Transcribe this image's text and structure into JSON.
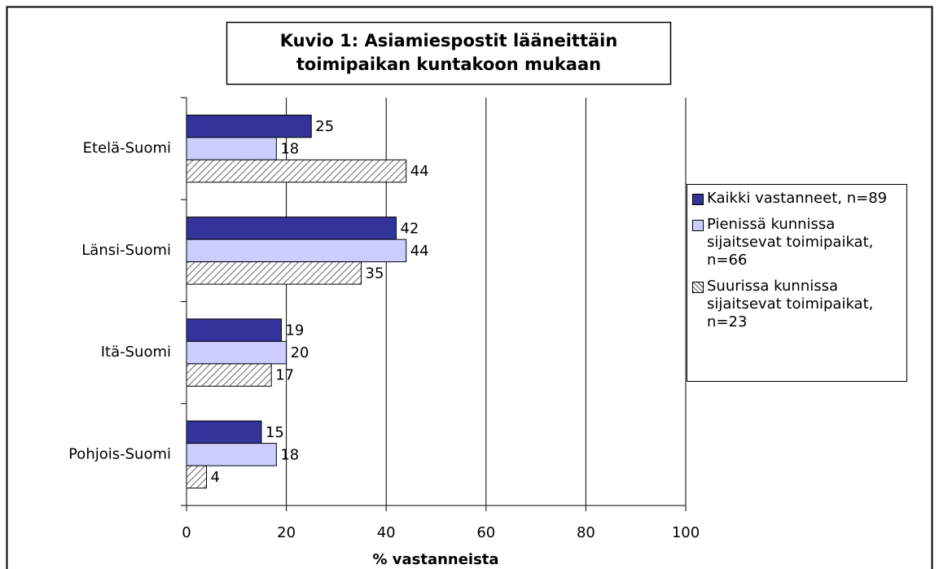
{
  "chart_data": {
    "type": "barh",
    "title": [
      "Kuvio 1: Asiamiespostit lääneittäin",
      "toimipaikan kuntakoon mukaan"
    ],
    "categories": [
      "Etelä-Suomi",
      "Länsi-Suomi",
      "Itä-Suomi",
      "Pohjois-Suomi"
    ],
    "series": [
      {
        "name": "Kaikki vastanneet, n=89",
        "color": "#333399",
        "values": [
          25,
          42,
          19,
          15
        ]
      },
      {
        "name": "Pienissä kunnissa sijaitsevat toimipaikat, n=66",
        "color": "#ccccff",
        "values": [
          18,
          44,
          20,
          18
        ]
      },
      {
        "name": "Suurissa kunnissa sijaitsevat toimipaikat, n=23",
        "color": "#808080",
        "pattern": "hatch",
        "values": [
          44,
          35,
          17,
          4
        ]
      }
    ],
    "xlabel": "% vastanneista",
    "xlim": [
      0,
      100
    ],
    "xticks": [
      0,
      20,
      40,
      60,
      80,
      100
    ],
    "grid": true,
    "legend": "right"
  }
}
